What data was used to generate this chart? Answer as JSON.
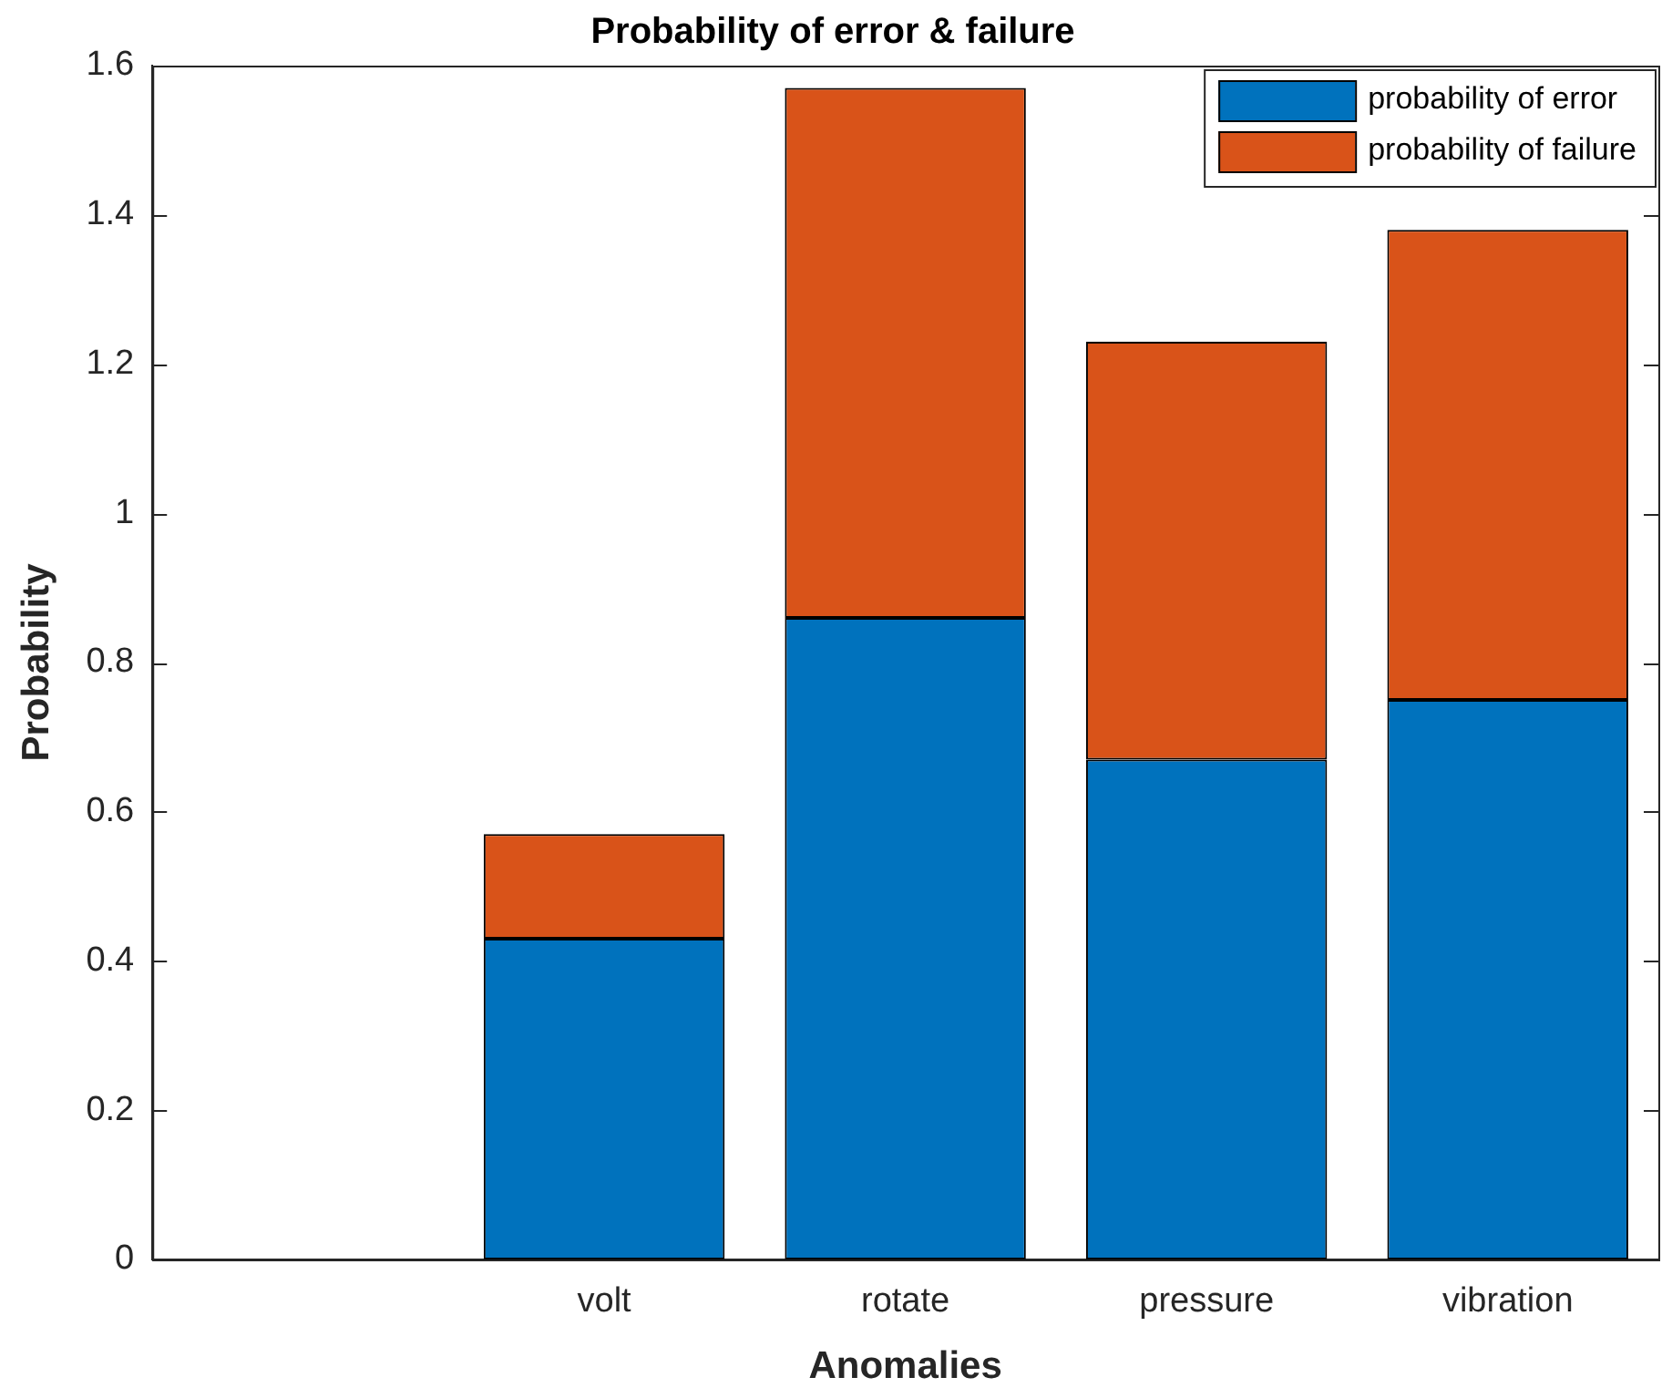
{
  "chart_data": {
    "type": "bar",
    "title": "Probability of error & failure",
    "xlabel": "Anomalies",
    "ylabel": "Probability",
    "categories": [
      null,
      "volt",
      "rotate",
      "pressure",
      "vibration"
    ],
    "series": [
      {
        "name": "probability of error",
        "color": "#0072bd",
        "values": [
          null,
          0.43,
          0.86,
          0.67,
          0.75
        ]
      },
      {
        "name": "probability of failure",
        "color": "#d95319",
        "values": [
          null,
          0.14,
          0.71,
          0.56,
          0.63
        ]
      }
    ],
    "stacked": true,
    "ylim": [
      0,
      1.6
    ],
    "yticks": [
      0,
      0.2,
      0.4,
      0.6,
      0.8,
      1,
      1.2,
      1.4,
      1.6
    ],
    "grid": false,
    "legend": "top right"
  }
}
